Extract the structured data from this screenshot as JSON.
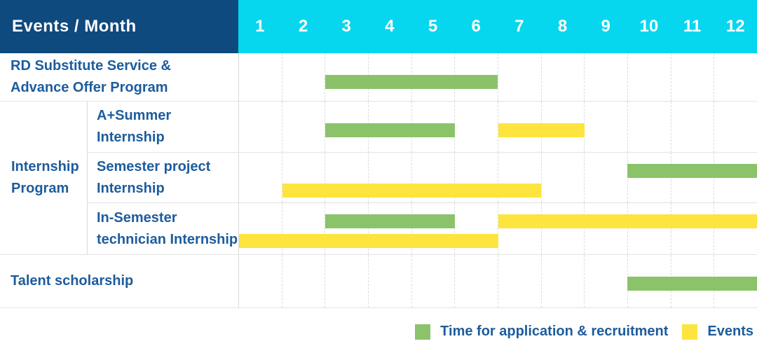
{
  "colors": {
    "header_bg": "#0f4a7e",
    "months_bg": "#07d6ef",
    "header_text": "#ffffff",
    "label_text": "#1d5c9d",
    "application_green": "#8bc36a",
    "events_yellow": "#fde43e",
    "grid_line": "#dcdcdc",
    "row_border": "#e3e3e3",
    "col_border": "#d9d9d9"
  },
  "header": {
    "title": "Events / Month",
    "months": [
      "1",
      "2",
      "3",
      "4",
      "5",
      "6",
      "7",
      "8",
      "9",
      "10",
      "11",
      "12"
    ]
  },
  "chart_data": {
    "type": "gantt",
    "unit": "month",
    "x_range": [
      1,
      12
    ],
    "grid": true,
    "rows": [
      {
        "group": "",
        "label": "RD Substitute Service &\nAdvance Offer Program",
        "bars": [
          {
            "series": "application",
            "start_month": 3,
            "end_month": 6,
            "lane": "single"
          }
        ]
      },
      {
        "group": "Internship\nProgram",
        "label": "A+Summer\nInternship",
        "bars": [
          {
            "series": "application",
            "start_month": 3,
            "end_month": 5,
            "lane": "single"
          },
          {
            "series": "events",
            "start_month": 7,
            "end_month": 8,
            "lane": "single"
          }
        ]
      },
      {
        "group": "Internship\nProgram",
        "label": "Semester project\nInternship",
        "bars": [
          {
            "series": "application",
            "start_month": 10,
            "end_month": 12,
            "lane": "top"
          },
          {
            "series": "events",
            "start_month": 2,
            "end_month": 7,
            "lane": "bottom"
          }
        ]
      },
      {
        "group": "Internship\nProgram",
        "label": "In-Semester\ntechnician Internship",
        "bars": [
          {
            "series": "application",
            "start_month": 3,
            "end_month": 5,
            "lane": "top"
          },
          {
            "series": "events",
            "start_month": 7,
            "end_month": 12,
            "lane": "top"
          },
          {
            "series": "events",
            "start_month": 1,
            "end_month": 6,
            "lane": "bottom"
          }
        ]
      },
      {
        "group": "",
        "label": "Talent scholarship",
        "bars": [
          {
            "series": "application",
            "start_month": 10,
            "end_month": 12,
            "lane": "single"
          }
        ]
      }
    ],
    "legend": [
      {
        "series": "application",
        "label": "Time for application & recruitment",
        "color": "#8bc36a"
      },
      {
        "series": "events",
        "label": "Events",
        "color": "#fde43e"
      }
    ],
    "legend_position": "bottom-right"
  }
}
